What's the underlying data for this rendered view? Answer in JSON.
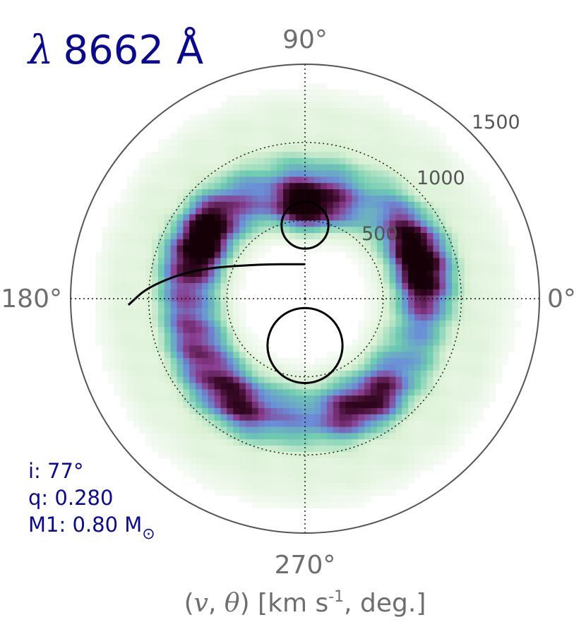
{
  "title": {
    "prefix": "λ",
    "value": "8662 Å"
  },
  "chart_data": {
    "type": "heatmap",
    "projection": "polar",
    "angle_ticks": [
      {
        "angle": 0,
        "label": "0°"
      },
      {
        "angle": 90,
        "label": "90°"
      },
      {
        "angle": 180,
        "label": "180°"
      },
      {
        "angle": 270,
        "label": "270°"
      }
    ],
    "radial_ticks": [
      {
        "value": 500,
        "label": "500"
      },
      {
        "value": 1000,
        "label": "1000"
      },
      {
        "value": 1500,
        "label": "1500"
      }
    ],
    "r_max": 1500,
    "grid": true,
    "axis_title": {
      "prefix": "(",
      "v": "v",
      "sep": ", ",
      "theta": "θ",
      "mid": ") [km s",
      "exp": "-1",
      "suffix": ", deg.]"
    },
    "parameters": {
      "inclination": "i: 77°",
      "mass_ratio": "q: 0.280",
      "m1_prefix": "M1: 0.80 M",
      "m1_subscript": "⊙"
    },
    "colormap": [
      "#ffffff",
      "#d9f0d3",
      "#6ecbb0",
      "#6a8fd8",
      "#8a3d8f",
      "#3d0a2a",
      "#150008"
    ],
    "emission_ring": {
      "center_kms": [
        0,
        0
      ],
      "peak_radius_kms": 740,
      "width_kms": 230,
      "hotspots": [
        {
          "theta": 150,
          "r": 760,
          "amp": 1.0
        },
        {
          "theta": 88,
          "r": 600,
          "amp": 1.0
        },
        {
          "theta": 18,
          "r": 780,
          "amp": 0.95
        },
        {
          "theta": 235,
          "r": 800,
          "amp": 0.55
        },
        {
          "theta": 300,
          "r": 780,
          "amp": 0.6
        },
        {
          "theta": 200,
          "r": 740,
          "amp": 0.35
        }
      ]
    },
    "overlay_curves": [
      {
        "name": "",
        "kind": "roche-lobe-secondary",
        "center_kms": [
          0,
          470
        ],
        "radius_kms": 150
      },
      {
        "name": "",
        "kind": "roche-lobe-primary",
        "center_kms": [
          0,
          -300
        ],
        "radius_kms": 240
      },
      {
        "name": "",
        "kind": "ballistic-stream",
        "points_kms": [
          [
            0,
            220
          ],
          [
            -300,
            220
          ],
          [
            -700,
            190
          ],
          [
            -1000,
            80
          ],
          [
            -1130,
            -40
          ]
        ]
      }
    ]
  }
}
